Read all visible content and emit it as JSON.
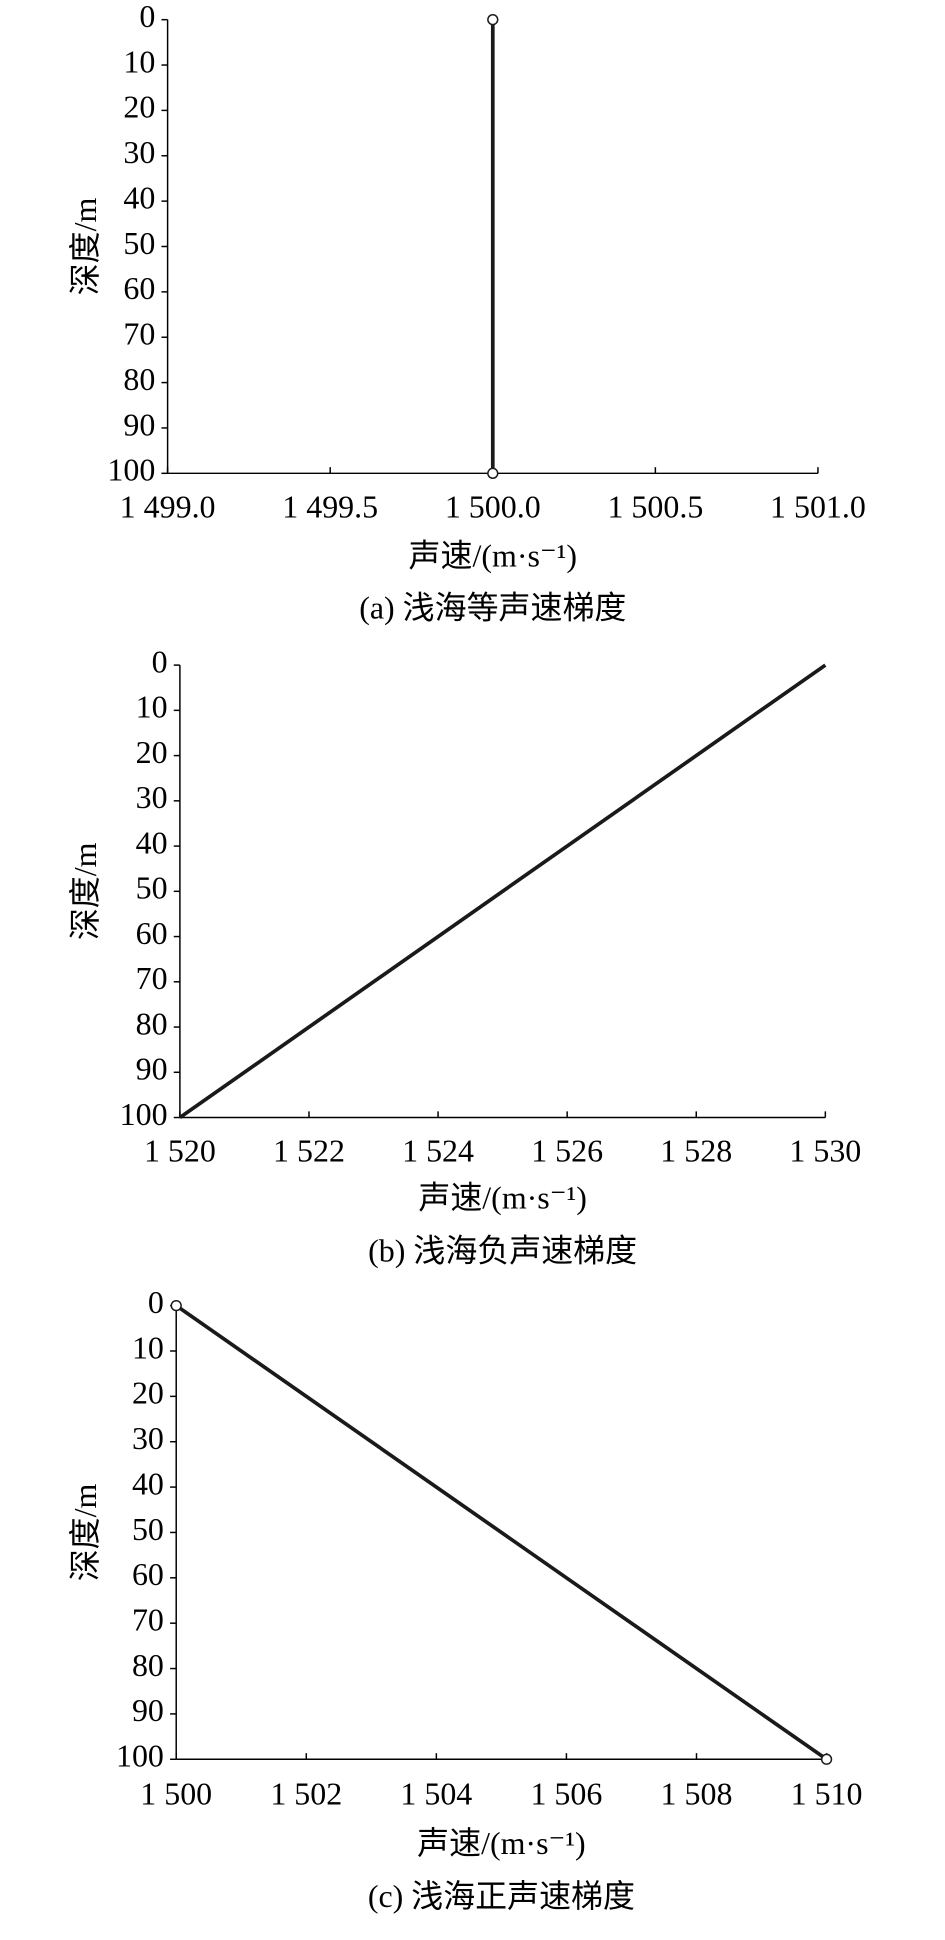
{
  "chart_data": [
    {
      "type": "line",
      "title": "(a) 浅海等声速梯度",
      "x_label": "声速/(m·s⁻¹)",
      "y_label": "深度/m",
      "x": [
        1500,
        1500
      ],
      "series": [
        {
          "color": "#1a1a1a",
          "values": [
            0,
            100
          ]
        }
      ],
      "marker": "circle",
      "xlim": [
        1499,
        1501
      ],
      "xticks": [
        {
          "value": 1499,
          "label": "1 499.0"
        },
        {
          "value": 1499.5,
          "label": "1 499.5"
        },
        {
          "value": 1500,
          "label": "1 500.0"
        },
        {
          "value": 1500.5,
          "label": "1 500.5"
        },
        {
          "value": 1501,
          "label": "1 501.0"
        }
      ],
      "ylim": [
        0,
        100
      ],
      "yticks": [
        0,
        10,
        20,
        30,
        40,
        50,
        60,
        70,
        80,
        90,
        100
      ],
      "y_reversed": true
    },
    {
      "type": "line",
      "title": "(b) 浅海负声速梯度",
      "x_label": "声速/(m·s⁻¹)",
      "y_label": "深度/m",
      "x": [
        1530,
        1520
      ],
      "series": [
        {
          "color": "#1a1a1a",
          "values": [
            0,
            100
          ]
        }
      ],
      "marker": "none",
      "xlim": [
        1520,
        1530
      ],
      "xticks": [
        {
          "value": 1520,
          "label": "1 520"
        },
        {
          "value": 1522,
          "label": "1 522"
        },
        {
          "value": 1524,
          "label": "1 524"
        },
        {
          "value": 1526,
          "label": "1 526"
        },
        {
          "value": 1528,
          "label": "1 528"
        },
        {
          "value": 1530,
          "label": "1 530"
        }
      ],
      "ylim": [
        0,
        100
      ],
      "yticks": [
        0,
        10,
        20,
        30,
        40,
        50,
        60,
        70,
        80,
        90,
        100
      ],
      "y_reversed": true
    },
    {
      "type": "line",
      "title": "(c) 浅海正声速梯度",
      "x_label": "声速/(m·s⁻¹)",
      "y_label": "深度/m",
      "x": [
        1500,
        1510
      ],
      "series": [
        {
          "color": "#1a1a1a",
          "values": [
            0,
            100
          ]
        }
      ],
      "marker": "circle",
      "xlim": [
        1500,
        1510
      ],
      "xticks": [
        {
          "value": 1500,
          "label": "1 500"
        },
        {
          "value": 1502,
          "label": "1 502"
        },
        {
          "value": 1504,
          "label": "1 504"
        },
        {
          "value": 1506,
          "label": "1 506"
        },
        {
          "value": 1508,
          "label": "1 508"
        },
        {
          "value": 1510,
          "label": "1 510"
        }
      ],
      "ylim": [
        0,
        100
      ],
      "yticks": [
        0,
        10,
        20,
        30,
        40,
        50,
        60,
        70,
        80,
        90,
        100
      ],
      "y_reversed": true
    }
  ]
}
